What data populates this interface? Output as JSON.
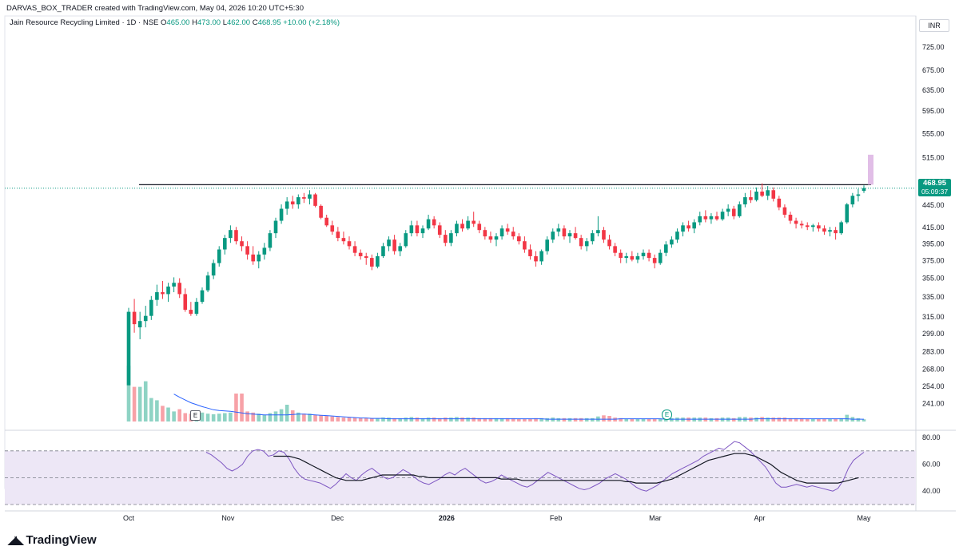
{
  "header": {
    "created_by": "DARVAS_BOX_TRADER created with TradingView.com, May 04, 2026 10:20 UTC+5:30"
  },
  "symbol": {
    "name": "Jain Resource Recycling Limited · 1D · NSE",
    "o_label": "O",
    "o": "465.00",
    "h_label": "H",
    "h": "473.00",
    "l_label": "L",
    "l": "462.00",
    "c_label": "C",
    "c": "468.95",
    "change": "+10.00 (+2.18%)"
  },
  "currency": "INR",
  "last_price": {
    "price": "468.95",
    "countdown": "05:09:37"
  },
  "branding": {
    "logo_text": "TradingView"
  },
  "events": [
    {
      "label": "E",
      "date": "Oct 21"
    },
    {
      "label": "E",
      "date": "Feb 25"
    }
  ],
  "colors": {
    "up": "#089981",
    "down": "#f23645",
    "up_volume": "#8ed3c4",
    "down_volume": "#f7a1a7",
    "volume_ma": "#2962ff",
    "rsi": "#7e57c2",
    "rsi_ma": "#131722",
    "rsi_band": "#ede7f6",
    "resistance_line": "#131722",
    "projection": "#e1bee7"
  },
  "chart_data": {
    "type": "candlestick",
    "price_axis": {
      "scale": "log",
      "range": [
        228,
        760
      ],
      "ticks": [
        "725.00",
        "675.00",
        "635.00",
        "595.00",
        "555.00",
        "515.00",
        "475.00",
        "445.00",
        "415.00",
        "395.00",
        "375.00",
        "355.00",
        "335.00",
        "315.00",
        "299.00",
        "283.00",
        "268.00",
        "254.00",
        "241.00"
      ]
    },
    "time_axis": {
      "ticks": [
        "Oct",
        "Nov",
        "Dec",
        "2026",
        "Feb",
        "Mar",
        "Apr",
        "May"
      ]
    },
    "resistance_level": 474,
    "projection_box": [
      474,
      520
    ],
    "ohlc_reference": {
      "o": 465,
      "h": 473,
      "l": 462,
      "c": 468.95
    },
    "candles": [
      [
        255,
        324,
        255,
        320,
        1
      ],
      [
        320,
        333,
        300,
        308,
        0.62
      ],
      [
        305,
        320,
        294,
        311,
        0.62
      ],
      [
        311,
        326,
        305,
        316,
        0.72
      ],
      [
        316,
        336,
        312,
        332,
        0.42
      ],
      [
        332,
        348,
        326,
        340,
        0.38
      ],
      [
        340,
        352,
        333,
        338,
        0.28
      ],
      [
        338,
        350,
        330,
        346,
        0.25
      ],
      [
        346,
        356,
        340,
        350,
        0.18
      ],
      [
        350,
        355,
        334,
        338,
        0.22
      ],
      [
        338,
        344,
        320,
        322,
        0.15
      ],
      [
        322,
        330,
        316,
        318,
        0.14
      ],
      [
        318,
        334,
        316,
        330,
        0.14
      ],
      [
        330,
        345,
        328,
        342,
        0.16
      ],
      [
        342,
        362,
        340,
        358,
        0.14
      ],
      [
        358,
        376,
        354,
        372,
        0.13
      ],
      [
        372,
        392,
        368,
        388,
        0.14
      ],
      [
        388,
        406,
        382,
        402,
        0.15
      ],
      [
        402,
        418,
        396,
        412,
        0.16
      ],
      [
        412,
        416,
        394,
        398,
        0.5
      ],
      [
        398,
        404,
        386,
        392,
        0.5
      ],
      [
        392,
        398,
        376,
        382,
        0.18
      ],
      [
        382,
        392,
        370,
        374,
        0.16
      ],
      [
        374,
        386,
        366,
        382,
        0.14
      ],
      [
        382,
        396,
        376,
        390,
        0.12
      ],
      [
        390,
        412,
        386,
        408,
        0.15
      ],
      [
        408,
        428,
        402,
        424,
        0.18
      ],
      [
        424,
        446,
        420,
        440,
        0.22
      ],
      [
        440,
        456,
        432,
        450,
        0.3
      ],
      [
        450,
        458,
        440,
        446,
        0.2
      ],
      [
        446,
        460,
        440,
        456,
        0.16
      ],
      [
        456,
        462,
        448,
        454,
        0.14
      ],
      [
        454,
        466,
        446,
        460,
        0.14
      ],
      [
        460,
        462,
        442,
        444,
        0.12
      ],
      [
        444,
        446,
        426,
        428,
        0.11
      ],
      [
        428,
        432,
        416,
        418,
        0.1
      ],
      [
        418,
        424,
        406,
        410,
        0.09
      ],
      [
        410,
        416,
        398,
        402,
        0.08
      ],
      [
        402,
        410,
        394,
        398,
        0.07
      ],
      [
        398,
        404,
        388,
        392,
        0.07
      ],
      [
        392,
        398,
        380,
        384,
        0.07
      ],
      [
        384,
        388,
        376,
        380,
        0.06
      ],
      [
        380,
        384,
        370,
        378,
        0.06
      ],
      [
        378,
        382,
        364,
        368,
        0.06
      ],
      [
        368,
        384,
        366,
        380,
        0.06
      ],
      [
        380,
        396,
        378,
        392,
        0.07
      ],
      [
        392,
        404,
        386,
        400,
        0.07
      ],
      [
        400,
        406,
        382,
        386,
        0.06
      ],
      [
        386,
        396,
        380,
        392,
        0.06
      ],
      [
        392,
        412,
        390,
        408,
        0.07
      ],
      [
        408,
        424,
        404,
        418,
        0.08
      ],
      [
        418,
        424,
        404,
        408,
        0.07
      ],
      [
        408,
        418,
        402,
        414,
        0.06
      ],
      [
        414,
        432,
        412,
        426,
        0.07
      ],
      [
        426,
        430,
        414,
        418,
        0.07
      ],
      [
        418,
        422,
        402,
        406,
        0.06
      ],
      [
        406,
        412,
        392,
        396,
        0.07
      ],
      [
        396,
        412,
        392,
        408,
        0.07
      ],
      [
        408,
        424,
        404,
        420,
        0.08
      ],
      [
        420,
        426,
        410,
        414,
        0.07
      ],
      [
        414,
        430,
        412,
        424,
        0.07
      ],
      [
        424,
        436,
        416,
        420,
        0.07
      ],
      [
        420,
        424,
        408,
        412,
        0.06
      ],
      [
        412,
        416,
        400,
        404,
        0.06
      ],
      [
        404,
        410,
        396,
        400,
        0.06
      ],
      [
        400,
        408,
        392,
        404,
        0.06
      ],
      [
        404,
        418,
        400,
        414,
        0.06
      ],
      [
        414,
        420,
        406,
        410,
        0.06
      ],
      [
        410,
        416,
        400,
        404,
        0.06
      ],
      [
        404,
        408,
        394,
        398,
        0.05
      ],
      [
        398,
        404,
        384,
        388,
        0.05
      ],
      [
        388,
        394,
        376,
        380,
        0.05
      ],
      [
        380,
        386,
        368,
        374,
        0.06
      ],
      [
        374,
        388,
        370,
        386,
        0.06
      ],
      [
        386,
        404,
        382,
        400,
        0.06
      ],
      [
        400,
        414,
        396,
        410,
        0.07
      ],
      [
        410,
        420,
        404,
        414,
        0.06
      ],
      [
        414,
        418,
        400,
        404,
        0.06
      ],
      [
        404,
        412,
        396,
        408,
        0.06
      ],
      [
        408,
        416,
        400,
        402,
        0.06
      ],
      [
        402,
        406,
        388,
        392,
        0.06
      ],
      [
        392,
        402,
        386,
        398,
        0.06
      ],
      [
        398,
        412,
        394,
        408,
        0.06
      ],
      [
        408,
        430,
        404,
        412,
        0.09
      ],
      [
        412,
        416,
        396,
        400,
        0.11
      ],
      [
        400,
        406,
        388,
        392,
        0.1
      ],
      [
        392,
        396,
        380,
        384,
        0.07
      ],
      [
        384,
        388,
        372,
        378,
        0.06
      ],
      [
        378,
        384,
        372,
        380,
        0.05
      ],
      [
        380,
        386,
        374,
        376,
        0.05
      ],
      [
        376,
        384,
        372,
        380,
        0.05
      ],
      [
        380,
        388,
        376,
        384,
        0.05
      ],
      [
        384,
        388,
        374,
        378,
        0.05
      ],
      [
        378,
        382,
        366,
        372,
        0.05
      ],
      [
        372,
        388,
        370,
        384,
        0.05
      ],
      [
        384,
        398,
        380,
        394,
        0.06
      ],
      [
        394,
        404,
        390,
        400,
        0.06
      ],
      [
        400,
        414,
        396,
        410,
        0.07
      ],
      [
        410,
        422,
        404,
        418,
        0.07
      ],
      [
        418,
        424,
        410,
        414,
        0.07
      ],
      [
        414,
        426,
        408,
        422,
        0.07
      ],
      [
        422,
        436,
        418,
        430,
        0.07
      ],
      [
        430,
        438,
        422,
        426,
        0.07
      ],
      [
        426,
        434,
        420,
        430,
        0.06
      ],
      [
        430,
        436,
        424,
        426,
        0.06
      ],
      [
        426,
        440,
        424,
        436,
        0.07
      ],
      [
        436,
        446,
        430,
        440,
        0.07
      ],
      [
        440,
        444,
        426,
        430,
        0.06
      ],
      [
        430,
        450,
        428,
        446,
        0.08
      ],
      [
        446,
        462,
        442,
        456,
        0.08
      ],
      [
        456,
        466,
        448,
        452,
        0.07
      ],
      [
        452,
        470,
        450,
        464,
        0.07
      ],
      [
        464,
        476,
        456,
        458,
        0.08
      ],
      [
        458,
        472,
        452,
        466,
        0.07
      ],
      [
        466,
        470,
        450,
        454,
        0.07
      ],
      [
        454,
        458,
        438,
        442,
        0.07
      ],
      [
        442,
        446,
        428,
        432,
        0.07
      ],
      [
        432,
        436,
        420,
        424,
        0.06
      ],
      [
        424,
        428,
        414,
        420,
        0.06
      ],
      [
        420,
        424,
        414,
        418,
        0.06
      ],
      [
        418,
        422,
        412,
        416,
        0.05
      ],
      [
        416,
        420,
        410,
        418,
        0.05
      ],
      [
        418,
        422,
        410,
        414,
        0.05
      ],
      [
        414,
        418,
        406,
        410,
        0.05
      ],
      [
        410,
        416,
        404,
        412,
        0.05
      ],
      [
        412,
        416,
        400,
        408,
        0.05
      ],
      [
        408,
        424,
        406,
        422,
        0.06
      ],
      [
        422,
        448,
        420,
        446,
        0.12
      ],
      [
        446,
        462,
        442,
        458,
        0.08
      ],
      [
        458,
        468,
        450,
        460,
        0.06
      ],
      [
        465,
        473,
        462,
        468.95,
        0.04
      ]
    ],
    "volume_ma": [
      0.7,
      0.62,
      0.55,
      0.48,
      0.43,
      0.38,
      0.34,
      0.3,
      0.28,
      0.27,
      0.26,
      0.24,
      0.22,
      0.2,
      0.19,
      0.18,
      0.17,
      0.17,
      0.17,
      0.17,
      0.17,
      0.18,
      0.19,
      0.19,
      0.18,
      0.17,
      0.16,
      0.15,
      0.14,
      0.13,
      0.12,
      0.11,
      0.1,
      0.09,
      0.09,
      0.08,
      0.08,
      0.08,
      0.07,
      0.07,
      0.07,
      0.07,
      0.07,
      0.07,
      0.07,
      0.07,
      0.07,
      0.07,
      0.07,
      0.07,
      0.07,
      0.07,
      0.07,
      0.07,
      0.07,
      0.07,
      0.07,
      0.07,
      0.07,
      0.07,
      0.07,
      0.07,
      0.07,
      0.07,
      0.07,
      0.07,
      0.06,
      0.06,
      0.06,
      0.06,
      0.06,
      0.06,
      0.06,
      0.06,
      0.06,
      0.06,
      0.06,
      0.06,
      0.06,
      0.07,
      0.07,
      0.07,
      0.07,
      0.07,
      0.07,
      0.07,
      0.07,
      0.06,
      0.06,
      0.06,
      0.06,
      0.06,
      0.06,
      0.06,
      0.06,
      0.06,
      0.06,
      0.06,
      0.06,
      0.06,
      0.06,
      0.06,
      0.06,
      0.07,
      0.07,
      0.07,
      0.07,
      0.07,
      0.07,
      0.07,
      0.07,
      0.07,
      0.07,
      0.07,
      0.07,
      0.07,
      0.07,
      0.07,
      0.07,
      0.07,
      0.06,
      0.06,
      0.06,
      0.06,
      0.06,
      0.06,
      0.06,
      0.07,
      0.07,
      0.07
    ],
    "rsi_axis": {
      "range": [
        30,
        80
      ],
      "ticks": [
        "80.00",
        "60.00",
        "40.00"
      ],
      "bands": [
        30,
        50,
        70
      ]
    },
    "rsi": [
      69,
      67,
      64,
      61,
      57,
      55,
      57,
      60,
      66,
      70,
      71,
      70,
      66,
      67,
      70,
      69,
      64,
      57,
      52,
      49,
      48,
      47,
      46,
      44,
      42,
      45,
      49,
      53,
      50,
      48,
      52,
      55,
      57,
      54,
      51,
      49,
      50,
      53,
      56,
      54,
      51,
      48,
      46,
      45,
      47,
      49,
      52,
      54,
      52,
      55,
      57,
      54,
      51,
      48,
      46,
      47,
      49,
      52,
      50,
      48,
      46,
      44,
      43,
      45,
      48,
      51,
      54,
      52,
      50,
      48,
      46,
      44,
      42,
      41,
      42,
      44,
      46,
      49,
      51,
      53,
      51,
      49,
      46,
      43,
      41,
      40,
      42,
      44,
      47,
      50,
      53,
      55,
      57,
      59,
      61,
      63,
      66,
      68,
      70,
      72,
      71,
      74,
      77,
      76,
      73,
      70,
      66,
      62,
      58,
      52,
      46,
      43,
      43,
      44,
      45,
      44,
      43,
      44,
      43,
      42,
      41,
      40,
      42,
      48,
      57,
      63,
      66,
      69
    ],
    "rsi_ma": [
      null,
      null,
      null,
      null,
      null,
      null,
      null,
      null,
      null,
      null,
      null,
      null,
      null,
      66,
      66,
      66,
      66,
      65,
      64,
      62,
      60,
      58,
      56,
      54,
      52,
      50,
      49,
      48,
      48,
      48,
      48,
      49,
      50,
      51,
      52,
      52,
      52,
      52,
      52,
      52,
      52,
      51,
      51,
      50,
      50,
      50,
      50,
      50,
      50,
      50,
      50,
      50,
      50,
      50,
      50,
      50,
      50,
      49,
      49,
      49,
      49,
      48,
      48,
      48,
      48,
      48,
      48,
      48,
      48,
      48,
      48,
      48,
      48,
      48,
      48,
      48,
      48,
      48,
      48,
      48,
      48,
      47,
      47,
      46,
      46,
      46,
      46,
      46,
      47,
      48,
      49,
      51,
      53,
      55,
      57,
      59,
      61,
      63,
      64,
      65,
      66,
      67,
      68,
      68,
      68,
      67,
      66,
      64,
      62,
      60,
      57,
      54,
      52,
      50,
      48,
      47,
      46,
      46,
      46,
      46,
      46,
      46,
      46,
      47,
      48,
      49,
      50
    ]
  }
}
